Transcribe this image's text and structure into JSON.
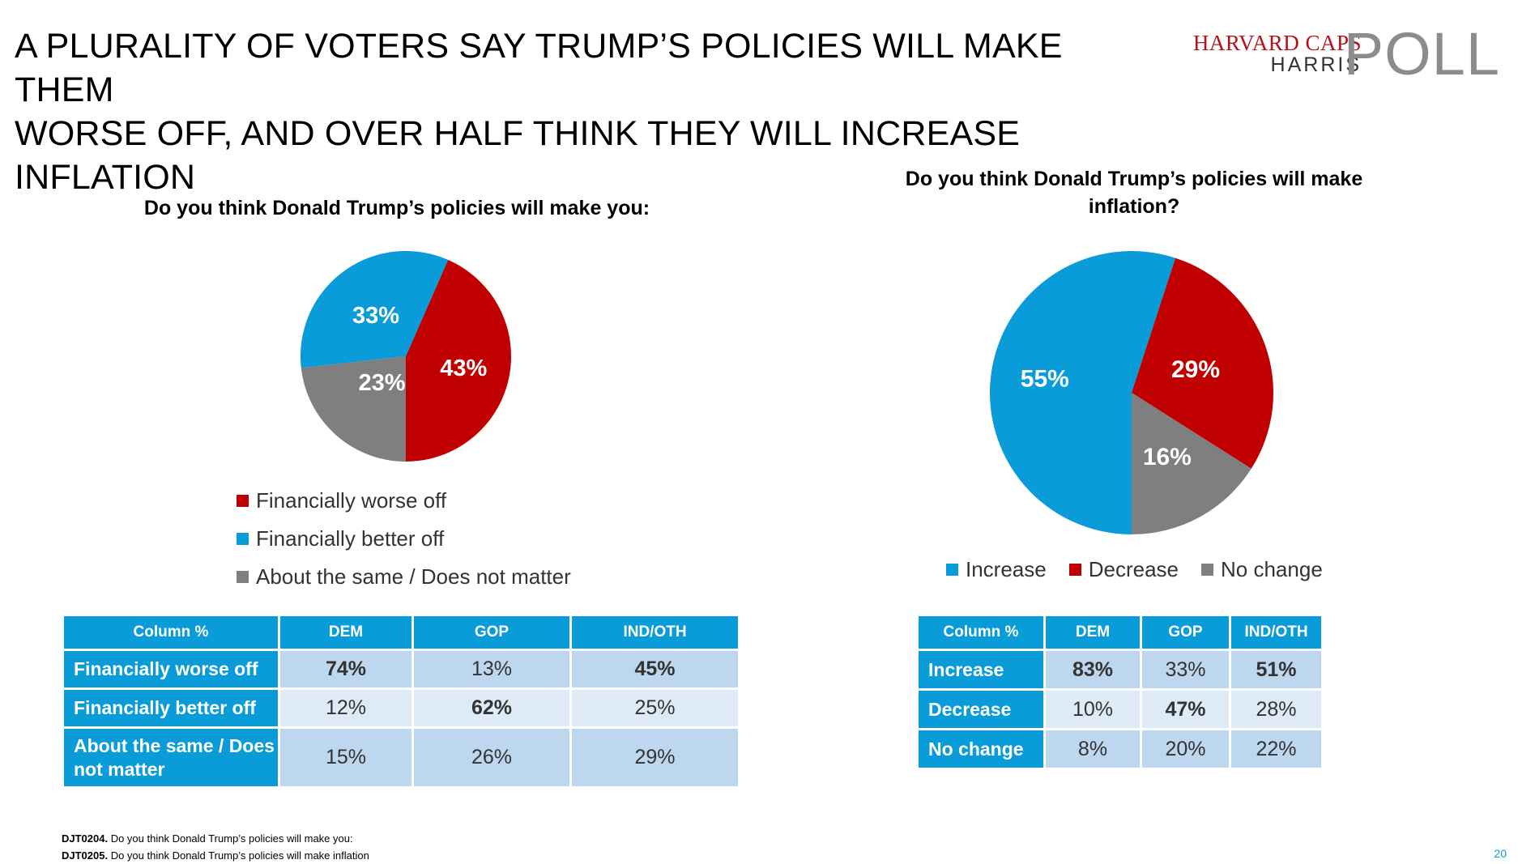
{
  "title": {
    "line1": "A PLURALITY OF VOTERS SAY TRUMP’S POLICIES WILL MAKE THEM",
    "line2": "WORSE OFF, AND OVER HALF THINK THEY WILL INCREASE INFLATION"
  },
  "logo": {
    "line1": "HARVARD CAPS",
    "line2": "HARRIS",
    "line3": "POLL"
  },
  "colors": {
    "red": "#c00000",
    "blue": "#0a9bd9",
    "gray": "#7f7f7f"
  },
  "chart_data": [
    {
      "type": "pie",
      "title": "Do you think Donald Trump’s policies will make you:",
      "labels": [
        "Financially worse off",
        "Financially better off",
        "About the same / Does not matter"
      ],
      "values": [
        43,
        33,
        23
      ],
      "value_labels": [
        "43%",
        "33%",
        "23%"
      ],
      "colors": [
        "#c00000",
        "#0a9bd9",
        "#7f7f7f"
      ],
      "legend_position": "bottom"
    },
    {
      "type": "pie",
      "title": "Do you think Donald Trump’s policies will make inflation?",
      "labels": [
        "Increase",
        "Decrease",
        "No change"
      ],
      "values": [
        55,
        29,
        16
      ],
      "value_labels": [
        "55%",
        "29%",
        "16%"
      ],
      "colors": [
        "#0a9bd9",
        "#c00000",
        "#7f7f7f"
      ],
      "legend_position": "bottom"
    },
    {
      "type": "table",
      "columns": [
        "Column %",
        "DEM",
        "GOP",
        "IND/OTH"
      ],
      "rows": [
        {
          "label": "Financially worse off",
          "values": [
            "74%",
            "13%",
            "45%"
          ],
          "bold": [
            true,
            false,
            true
          ]
        },
        {
          "label": "Financially better off",
          "values": [
            "12%",
            "62%",
            "25%"
          ],
          "bold": [
            false,
            true,
            false
          ]
        },
        {
          "label": "About the same / Does not matter",
          "values": [
            "15%",
            "26%",
            "29%"
          ],
          "bold": [
            false,
            false,
            false
          ]
        }
      ]
    },
    {
      "type": "table",
      "columns": [
        "Column %",
        "DEM",
        "GOP",
        "IND/OTH"
      ],
      "rows": [
        {
          "label": "Increase",
          "values": [
            "83%",
            "33%",
            "51%"
          ],
          "bold": [
            true,
            false,
            true
          ]
        },
        {
          "label": "Decrease",
          "values": [
            "10%",
            "47%",
            "28%"
          ],
          "bold": [
            false,
            true,
            false
          ]
        },
        {
          "label": "No change",
          "values": [
            "8%",
            "20%",
            "22%"
          ],
          "bold": [
            false,
            false,
            false
          ]
        }
      ]
    }
  ],
  "chart2_title_lines": [
    "Do you think Donald Trump’s policies will make",
    "inflation?"
  ],
  "footnotes": [
    {
      "code": "DJT0204.",
      "text": " Do you think Donald Trump’s policies will make you:"
    },
    {
      "code": "DJT0205.",
      "text": " Do you think Donald Trump’s policies will make inflation"
    }
  ],
  "page_number": "20"
}
